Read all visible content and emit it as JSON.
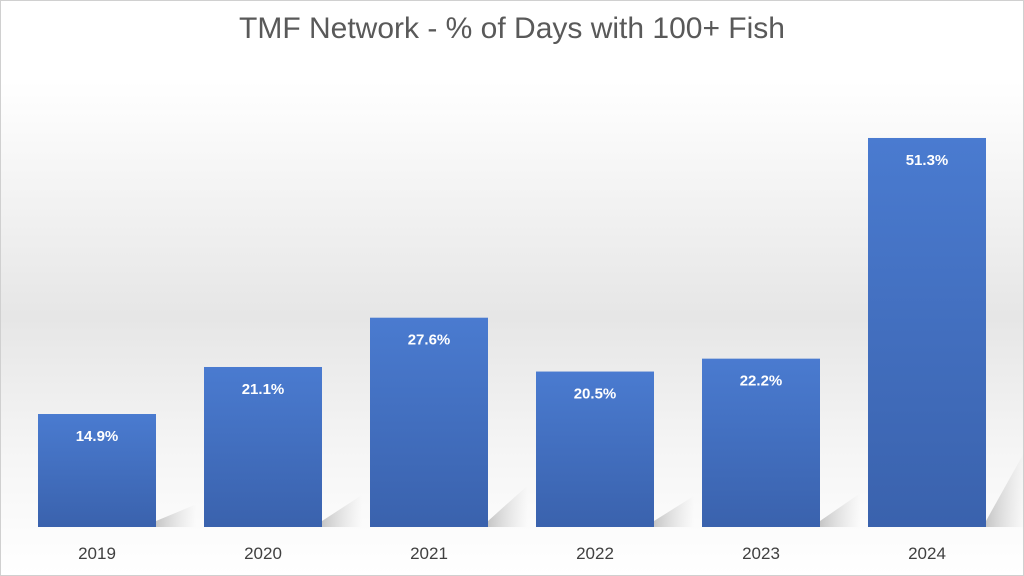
{
  "chart_data": {
    "type": "bar",
    "title": "TMF Network - % of Days with 100+ Fish",
    "categories": [
      "2019",
      "2020",
      "2021",
      "2022",
      "2023",
      "2024"
    ],
    "values": [
      14.9,
      21.1,
      27.6,
      20.5,
      22.2,
      51.3
    ],
    "value_labels": [
      "14.9%",
      "21.1%",
      "27.6%",
      "20.5%",
      "22.2%",
      "51.3%"
    ],
    "xlabel": "",
    "ylabel": "",
    "ylim": [
      0,
      60
    ],
    "grid": false,
    "legend": "none",
    "bar_color": "#4472c4"
  }
}
